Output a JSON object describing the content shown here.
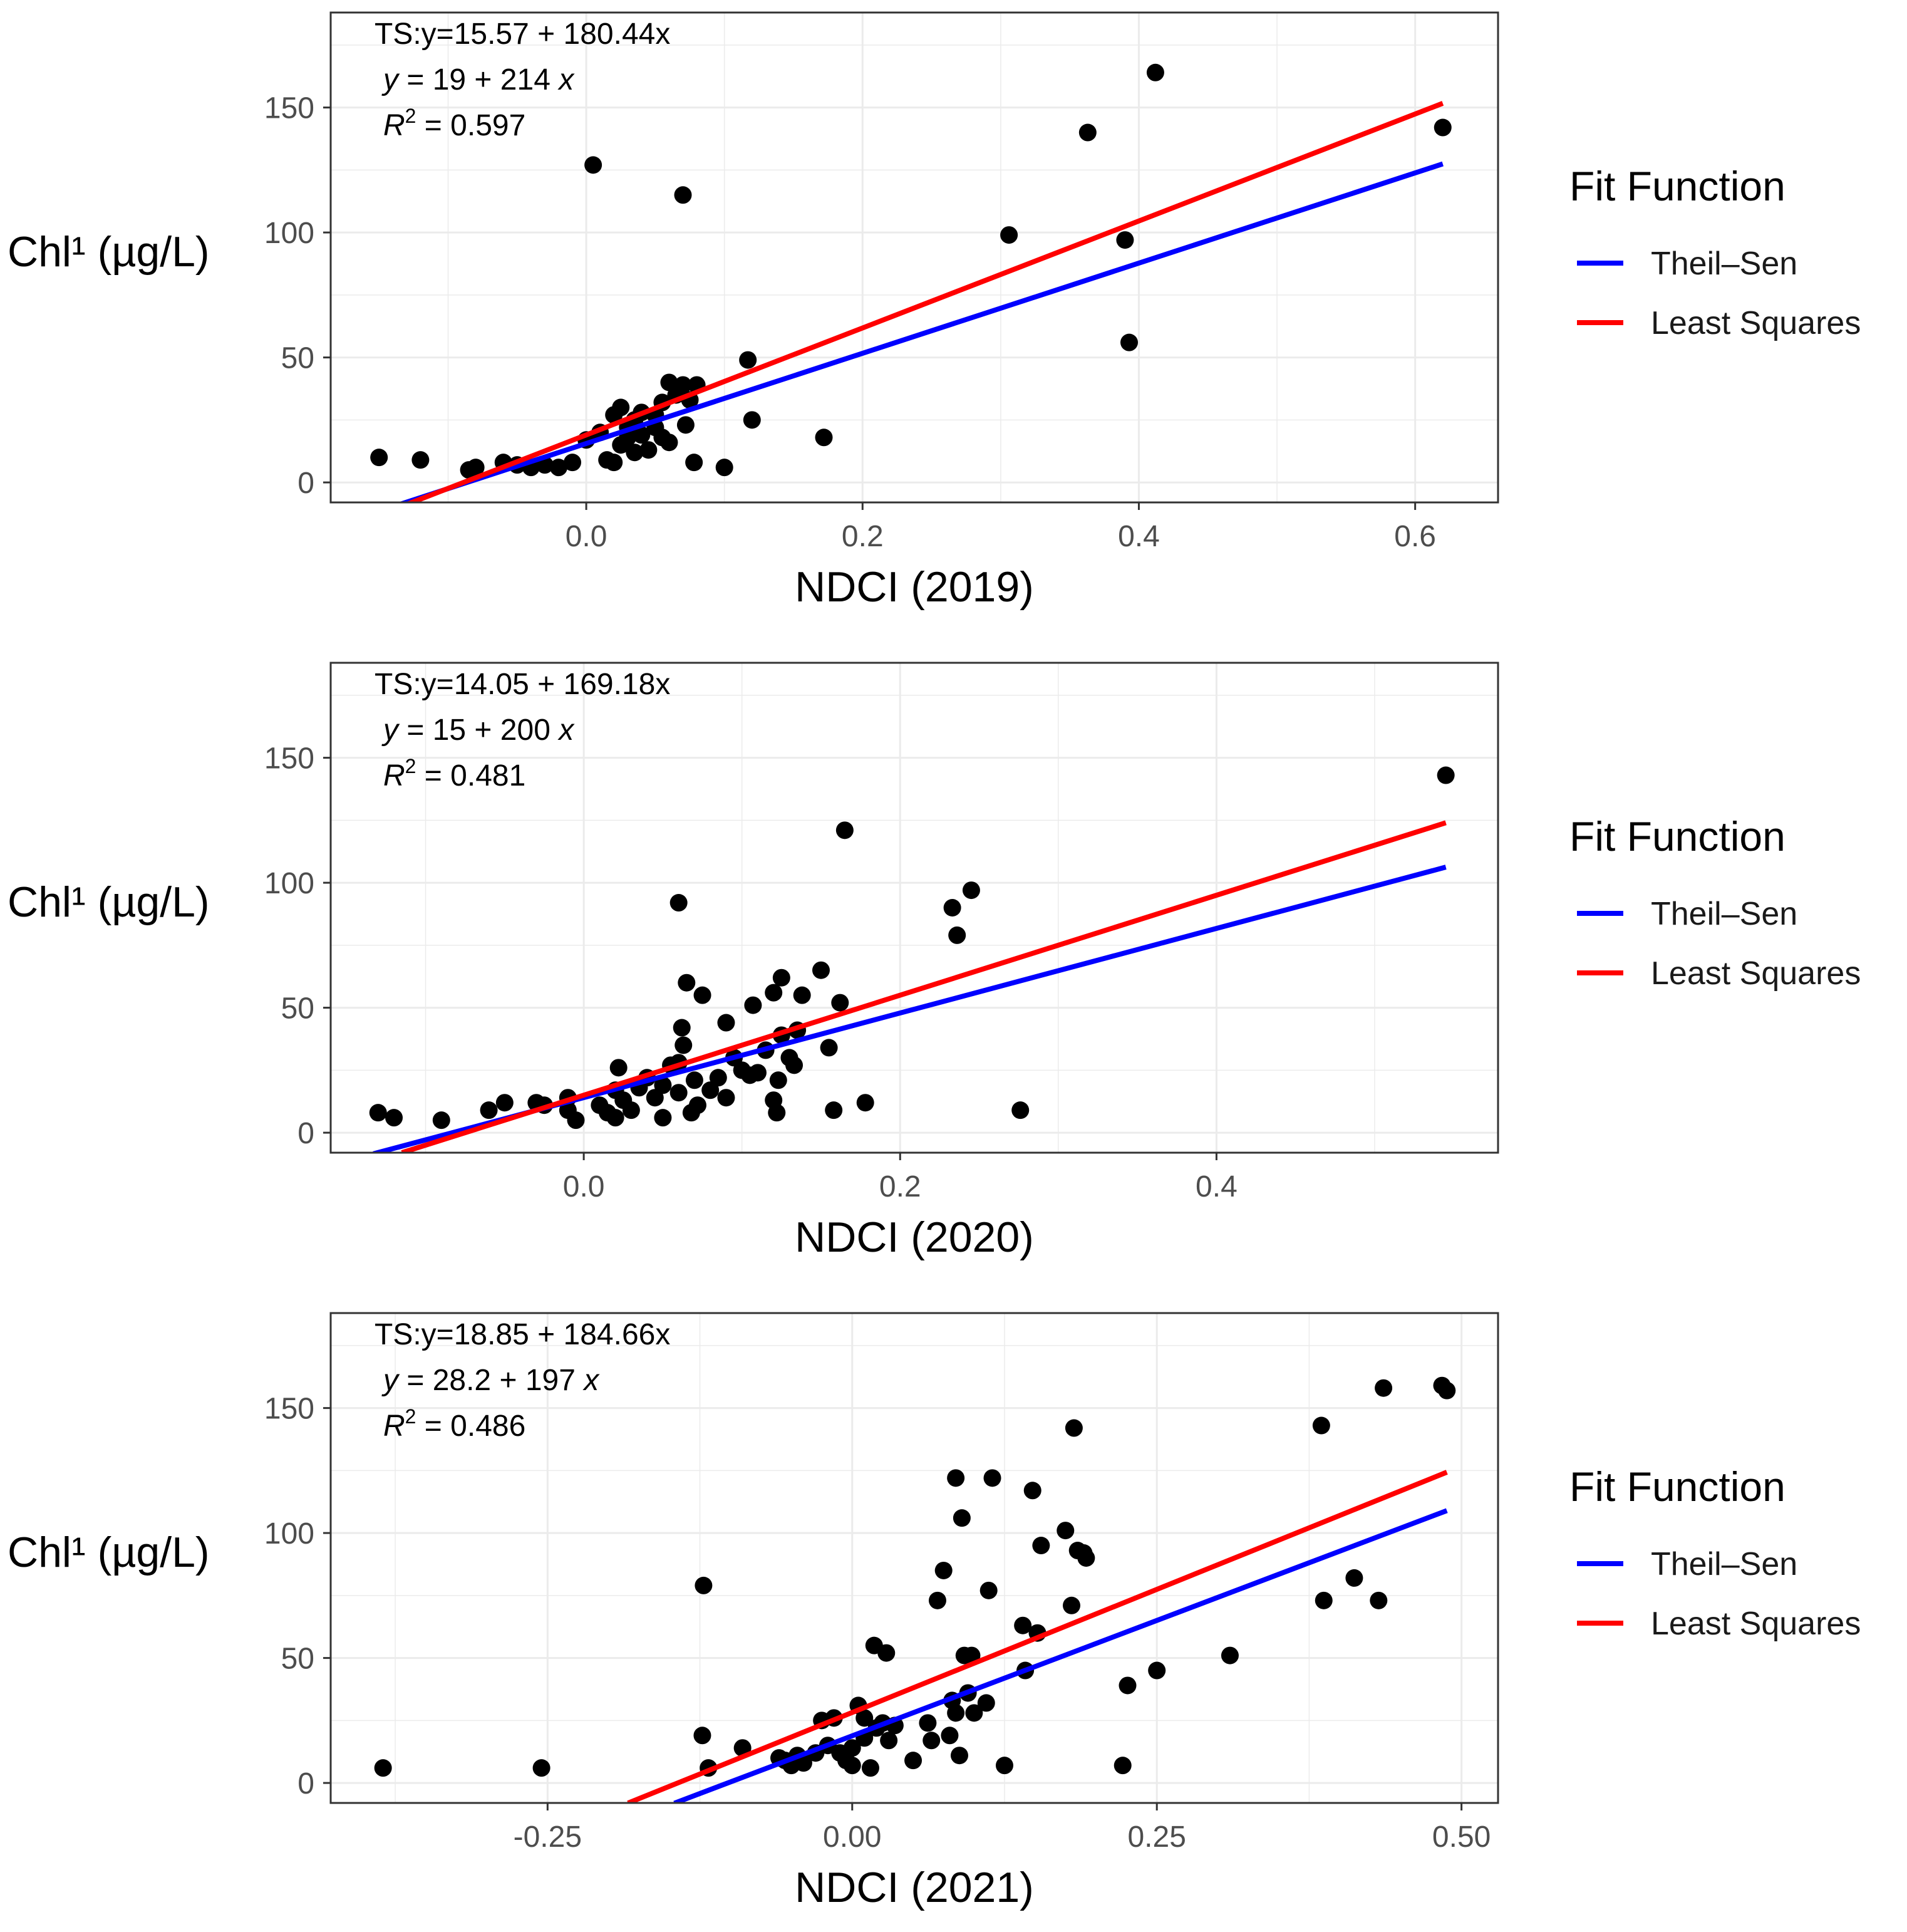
{
  "chart_data": [
    {
      "type": "scatter",
      "xlabel": "NDCI (2019)",
      "ylabel": "Chl¹ (µg/L)",
      "xlim": [
        -0.185,
        0.66
      ],
      "ylim": [
        -8,
        188
      ],
      "x_ticks": [
        0.0,
        0.2,
        0.4,
        0.6
      ],
      "x_tick_labels": [
        "0.0",
        "0.2",
        "0.4",
        "0.6"
      ],
      "y_ticks": [
        0,
        50,
        100,
        150
      ],
      "y_tick_labels": [
        "0",
        "50",
        "100",
        "150"
      ],
      "annotations": {
        "ts": "TS:y=15.57 + 180.44x",
        "ls_lhs": "y",
        "ls_rhs": " = 19 + 214 ",
        "ls_x": "x",
        "r2_lhs": "R",
        "r2_sup": "2",
        "r2_rhs": " = 0.597"
      },
      "lines": [
        {
          "name": "Theil–Sen",
          "color": "#0000ff",
          "intercept": 15.57,
          "slope": 180.44,
          "x_range": [
            -0.155,
            0.62
          ]
        },
        {
          "name": "Least Squares",
          "color": "#ff0000",
          "intercept": 19,
          "slope": 214,
          "x_range": [
            -0.13,
            0.62
          ]
        }
      ],
      "points": [
        [
          -0.15,
          10
        ],
        [
          -0.12,
          9
        ],
        [
          -0.085,
          5
        ],
        [
          -0.08,
          6
        ],
        [
          -0.06,
          8
        ],
        [
          -0.05,
          7
        ],
        [
          -0.04,
          6
        ],
        [
          -0.03,
          7
        ],
        [
          -0.02,
          6
        ],
        [
          -0.01,
          8
        ],
        [
          0.0,
          17
        ],
        [
          0.005,
          127
        ],
        [
          0.01,
          20
        ],
        [
          0.015,
          9
        ],
        [
          0.02,
          27
        ],
        [
          0.02,
          8
        ],
        [
          0.025,
          30
        ],
        [
          0.025,
          15
        ],
        [
          0.03,
          22
        ],
        [
          0.03,
          18
        ],
        [
          0.035,
          25
        ],
        [
          0.035,
          12
        ],
        [
          0.04,
          28
        ],
        [
          0.04,
          19
        ],
        [
          0.045,
          13
        ],
        [
          0.05,
          27
        ],
        [
          0.05,
          22
        ],
        [
          0.055,
          32
        ],
        [
          0.055,
          18
        ],
        [
          0.06,
          40
        ],
        [
          0.06,
          16
        ],
        [
          0.065,
          35
        ],
        [
          0.07,
          39
        ],
        [
          0.07,
          115
        ],
        [
          0.072,
          23
        ],
        [
          0.075,
          33
        ],
        [
          0.078,
          8
        ],
        [
          0.08,
          39
        ],
        [
          0.1,
          6
        ],
        [
          0.117,
          49
        ],
        [
          0.12,
          25
        ],
        [
          0.172,
          18
        ],
        [
          0.306,
          99
        ],
        [
          0.363,
          140
        ],
        [
          0.39,
          97
        ],
        [
          0.393,
          56
        ],
        [
          0.412,
          164
        ],
        [
          0.62,
          142
        ]
      ],
      "legend": {
        "title": "Fit Function",
        "items": [
          "Theil–Sen",
          "Least Squares"
        ],
        "colors": [
          "#0000ff",
          "#ff0000"
        ]
      }
    },
    {
      "type": "scatter",
      "xlabel": "NDCI (2020)",
      "ylabel": "Chl¹ (µg/L)",
      "xlim": [
        -0.16,
        0.578
      ],
      "ylim": [
        -8,
        188
      ],
      "x_ticks": [
        0.0,
        0.2,
        0.4
      ],
      "x_tick_labels": [
        "0.0",
        "0.2",
        "0.4"
      ],
      "y_ticks": [
        0,
        50,
        100,
        150
      ],
      "y_tick_labels": [
        "0",
        "50",
        "100",
        "150"
      ],
      "annotations": {
        "ts": "TS:y=14.05 + 169.18x",
        "ls_lhs": "y",
        "ls_rhs": " = 15 + 200 ",
        "ls_x": "x",
        "r2_lhs": "R",
        "r2_sup": "2",
        "r2_rhs": " = 0.481"
      },
      "lines": [
        {
          "name": "Theil–Sen",
          "color": "#0000ff",
          "intercept": 14.05,
          "slope": 169.18,
          "x_range": [
            -0.133,
            0.545
          ]
        },
        {
          "name": "Least Squares",
          "color": "#ff0000",
          "intercept": 15,
          "slope": 200,
          "x_range": [
            -0.115,
            0.545
          ]
        }
      ],
      "points": [
        [
          -0.13,
          8
        ],
        [
          -0.12,
          6
        ],
        [
          -0.09,
          5
        ],
        [
          -0.06,
          9
        ],
        [
          -0.05,
          12
        ],
        [
          -0.03,
          12
        ],
        [
          -0.025,
          11
        ],
        [
          -0.01,
          14
        ],
        [
          -0.01,
          9
        ],
        [
          -0.005,
          5
        ],
        [
          0.01,
          11
        ],
        [
          0.015,
          8
        ],
        [
          0.02,
          6
        ],
        [
          0.02,
          17
        ],
        [
          0.022,
          26
        ],
        [
          0.025,
          13
        ],
        [
          0.03,
          9
        ],
        [
          0.035,
          18
        ],
        [
          0.04,
          22
        ],
        [
          0.045,
          14
        ],
        [
          0.05,
          6
        ],
        [
          0.05,
          19
        ],
        [
          0.055,
          27
        ],
        [
          0.06,
          16
        ],
        [
          0.06,
          92
        ],
        [
          0.06,
          28
        ],
        [
          0.062,
          42
        ],
        [
          0.063,
          35
        ],
        [
          0.065,
          60
        ],
        [
          0.068,
          8
        ],
        [
          0.07,
          21
        ],
        [
          0.072,
          11
        ],
        [
          0.075,
          55
        ],
        [
          0.08,
          17
        ],
        [
          0.085,
          22
        ],
        [
          0.09,
          44
        ],
        [
          0.09,
          14
        ],
        [
          0.095,
          30
        ],
        [
          0.1,
          25
        ],
        [
          0.105,
          23
        ],
        [
          0.107,
          51
        ],
        [
          0.11,
          24
        ],
        [
          0.115,
          33
        ],
        [
          0.12,
          56
        ],
        [
          0.12,
          13
        ],
        [
          0.122,
          8
        ],
        [
          0.123,
          21
        ],
        [
          0.125,
          39
        ],
        [
          0.125,
          62
        ],
        [
          0.13,
          30
        ],
        [
          0.133,
          27
        ],
        [
          0.135,
          41
        ],
        [
          0.138,
          55
        ],
        [
          0.15,
          65
        ],
        [
          0.155,
          34
        ],
        [
          0.158,
          9
        ],
        [
          0.162,
          52
        ],
        [
          0.165,
          121
        ],
        [
          0.178,
          12
        ],
        [
          0.233,
          90
        ],
        [
          0.236,
          79
        ],
        [
          0.245,
          97
        ],
        [
          0.276,
          9
        ],
        [
          0.545,
          143
        ]
      ],
      "legend": {
        "title": "Fit Function",
        "items": [
          "Theil–Sen",
          "Least Squares"
        ],
        "colors": [
          "#0000ff",
          "#ff0000"
        ]
      }
    },
    {
      "type": "scatter",
      "xlabel": "NDCI (2021)",
      "ylabel": "Chl¹ (µg/L)",
      "xlim": [
        -0.428,
        0.53
      ],
      "ylim": [
        -8,
        188
      ],
      "x_ticks": [
        -0.25,
        0.0,
        0.25,
        0.5
      ],
      "x_tick_labels": [
        "-0.25",
        "0.00",
        "0.25",
        "0.50"
      ],
      "y_ticks": [
        0,
        50,
        100,
        150
      ],
      "y_tick_labels": [
        "0",
        "50",
        "100",
        "150"
      ],
      "annotations": {
        "ts": "TS:y=18.85 + 184.66x",
        "ls_lhs": "y",
        "ls_rhs": " = 28.2 + 197 ",
        "ls_x": "x",
        "r2_lhs": "R",
        "r2_sup": "2",
        "r2_rhs": " = 0.486"
      },
      "lines": [
        {
          "name": "Theil–Sen",
          "color": "#0000ff",
          "intercept": 18.85,
          "slope": 184.66,
          "x_range": [
            -0.146,
            0.488
          ]
        },
        {
          "name": "Least Squares",
          "color": "#ff0000",
          "intercept": 28.2,
          "slope": 197,
          "x_range": [
            -0.184,
            0.488
          ]
        }
      ],
      "points": [
        [
          -0.385,
          6
        ],
        [
          -0.255,
          6
        ],
        [
          -0.122,
          79
        ],
        [
          -0.123,
          19
        ],
        [
          -0.118,
          6
        ],
        [
          -0.09,
          14
        ],
        [
          -0.06,
          10
        ],
        [
          -0.055,
          9
        ],
        [
          -0.05,
          7
        ],
        [
          -0.045,
          11
        ],
        [
          -0.04,
          8
        ],
        [
          -0.03,
          12
        ],
        [
          -0.025,
          25
        ],
        [
          -0.02,
          15
        ],
        [
          -0.015,
          26
        ],
        [
          -0.01,
          12
        ],
        [
          -0.005,
          9
        ],
        [
          0.0,
          14
        ],
        [
          0.0,
          7
        ],
        [
          0.005,
          31
        ],
        [
          0.01,
          26
        ],
        [
          0.01,
          18
        ],
        [
          0.015,
          6
        ],
        [
          0.018,
          55
        ],
        [
          0.02,
          22
        ],
        [
          0.025,
          24
        ],
        [
          0.028,
          52
        ],
        [
          0.03,
          17
        ],
        [
          0.035,
          23
        ],
        [
          0.05,
          9
        ],
        [
          0.062,
          24
        ],
        [
          0.065,
          17
        ],
        [
          0.07,
          73
        ],
        [
          0.075,
          85
        ],
        [
          0.08,
          19
        ],
        [
          0.082,
          33
        ],
        [
          0.085,
          28
        ],
        [
          0.085,
          122
        ],
        [
          0.088,
          11
        ],
        [
          0.09,
          106
        ],
        [
          0.092,
          51
        ],
        [
          0.095,
          36
        ],
        [
          0.098,
          51
        ],
        [
          0.1,
          28
        ],
        [
          0.11,
          32
        ],
        [
          0.112,
          77
        ],
        [
          0.115,
          122
        ],
        [
          0.125,
          7
        ],
        [
          0.14,
          63
        ],
        [
          0.142,
          45
        ],
        [
          0.148,
          117
        ],
        [
          0.152,
          60
        ],
        [
          0.155,
          95
        ],
        [
          0.175,
          101
        ],
        [
          0.18,
          71
        ],
        [
          0.182,
          142
        ],
        [
          0.185,
          93
        ],
        [
          0.19,
          92
        ],
        [
          0.192,
          90
        ],
        [
          0.222,
          7
        ],
        [
          0.226,
          39
        ],
        [
          0.25,
          45
        ],
        [
          0.31,
          51
        ],
        [
          0.385,
          143
        ],
        [
          0.387,
          73
        ],
        [
          0.412,
          82
        ],
        [
          0.432,
          73
        ],
        [
          0.436,
          158
        ],
        [
          0.484,
          159
        ],
        [
          0.488,
          157
        ]
      ],
      "legend": {
        "title": "Fit Function",
        "items": [
          "Theil–Sen",
          "Least Squares"
        ],
        "colors": [
          "#0000ff",
          "#ff0000"
        ]
      }
    }
  ]
}
